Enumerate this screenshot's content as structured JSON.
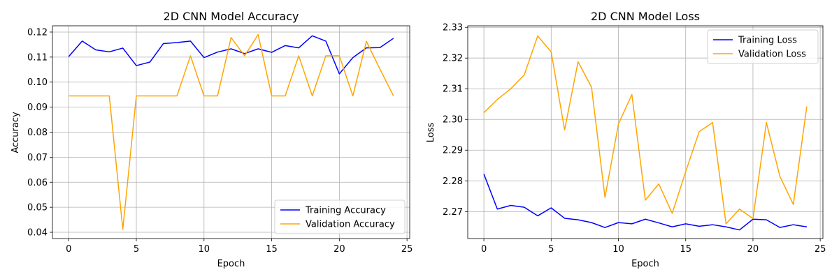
{
  "chart_data": [
    {
      "type": "line",
      "title": "2D CNN Model Accuracy",
      "xlabel": "Epoch",
      "ylabel": "Accuracy",
      "xlim": [
        -1.2,
        25.2
      ],
      "ylim": [
        0.0375,
        0.1225
      ],
      "xticks": [
        0,
        5,
        10,
        15,
        20,
        25
      ],
      "yticks": [
        0.04,
        0.05,
        0.06,
        0.07,
        0.08,
        0.09,
        0.1,
        0.11,
        0.12
      ],
      "ytick_labels": [
        "0.04",
        "0.05",
        "0.06",
        "0.07",
        "0.08",
        "0.09",
        "0.10",
        "0.11",
        "0.12"
      ],
      "grid": true,
      "legend": "bottom-right",
      "x": [
        0,
        1,
        2,
        3,
        4,
        5,
        6,
        7,
        8,
        9,
        10,
        11,
        12,
        13,
        14,
        15,
        16,
        17,
        18,
        19,
        20,
        21,
        22,
        23,
        24
      ],
      "series": [
        {
          "name": "Training Accuracy",
          "color": "#0000ff",
          "values": [
            0.1102,
            0.1164,
            0.1129,
            0.1121,
            0.1136,
            0.1066,
            0.108,
            0.1154,
            0.1158,
            0.1164,
            0.1098,
            0.112,
            0.1133,
            0.1114,
            0.1133,
            0.1119,
            0.1146,
            0.1137,
            0.1185,
            0.1164,
            0.1033,
            0.1098,
            0.1137,
            0.1138,
            0.1175
          ]
        },
        {
          "name": "Validation Accuracy",
          "color": "#ffa500",
          "values": [
            0.0945,
            0.0945,
            0.0945,
            0.0945,
            0.0412,
            0.0945,
            0.0945,
            0.0945,
            0.0945,
            0.1105,
            0.0945,
            0.0945,
            0.1178,
            0.1105,
            0.119,
            0.0945,
            0.0945,
            0.1105,
            0.0945,
            0.1105,
            0.1105,
            0.0945,
            0.1163,
            0.1052,
            0.0945
          ]
        }
      ]
    },
    {
      "type": "line",
      "title": "2D CNN Model Loss",
      "xlabel": "Epoch",
      "ylabel": "Loss",
      "xlim": [
        -1.2,
        25.2
      ],
      "ylim": [
        2.2612,
        2.3305
      ],
      "xticks": [
        0,
        5,
        10,
        15,
        20,
        25
      ],
      "yticks": [
        2.27,
        2.28,
        2.29,
        2.3,
        2.31,
        2.32,
        2.33
      ],
      "ytick_labels": [
        "2.27",
        "2.28",
        "2.29",
        "2.30",
        "2.31",
        "2.32",
        "2.33"
      ],
      "grid": true,
      "legend": "top-right",
      "x": [
        0,
        1,
        2,
        3,
        4,
        5,
        6,
        7,
        8,
        9,
        10,
        11,
        12,
        13,
        14,
        15,
        16,
        17,
        18,
        19,
        20,
        21,
        22,
        23,
        24
      ],
      "series": [
        {
          "name": "Training Loss",
          "color": "#0000ff",
          "values": [
            2.2822,
            2.2708,
            2.272,
            2.2714,
            2.2686,
            2.2712,
            2.2678,
            2.2673,
            2.2664,
            2.2648,
            2.2664,
            2.266,
            2.2675,
            2.2663,
            2.265,
            2.266,
            2.2652,
            2.2657,
            2.265,
            2.264,
            2.2675,
            2.2673,
            2.2648,
            2.2657,
            2.265
          ]
        },
        {
          "name": "Validation Loss",
          "color": "#ffa500",
          "values": [
            2.3022,
            2.3065,
            2.31,
            2.3145,
            2.3272,
            2.322,
            2.2966,
            2.3188,
            2.3105,
            2.2746,
            2.2985,
            2.3081,
            2.2737,
            2.279,
            2.2694,
            2.283,
            2.296,
            2.299,
            2.266,
            2.2708,
            2.2677,
            2.299,
            2.2815,
            2.2723,
            2.3042
          ]
        }
      ]
    }
  ]
}
